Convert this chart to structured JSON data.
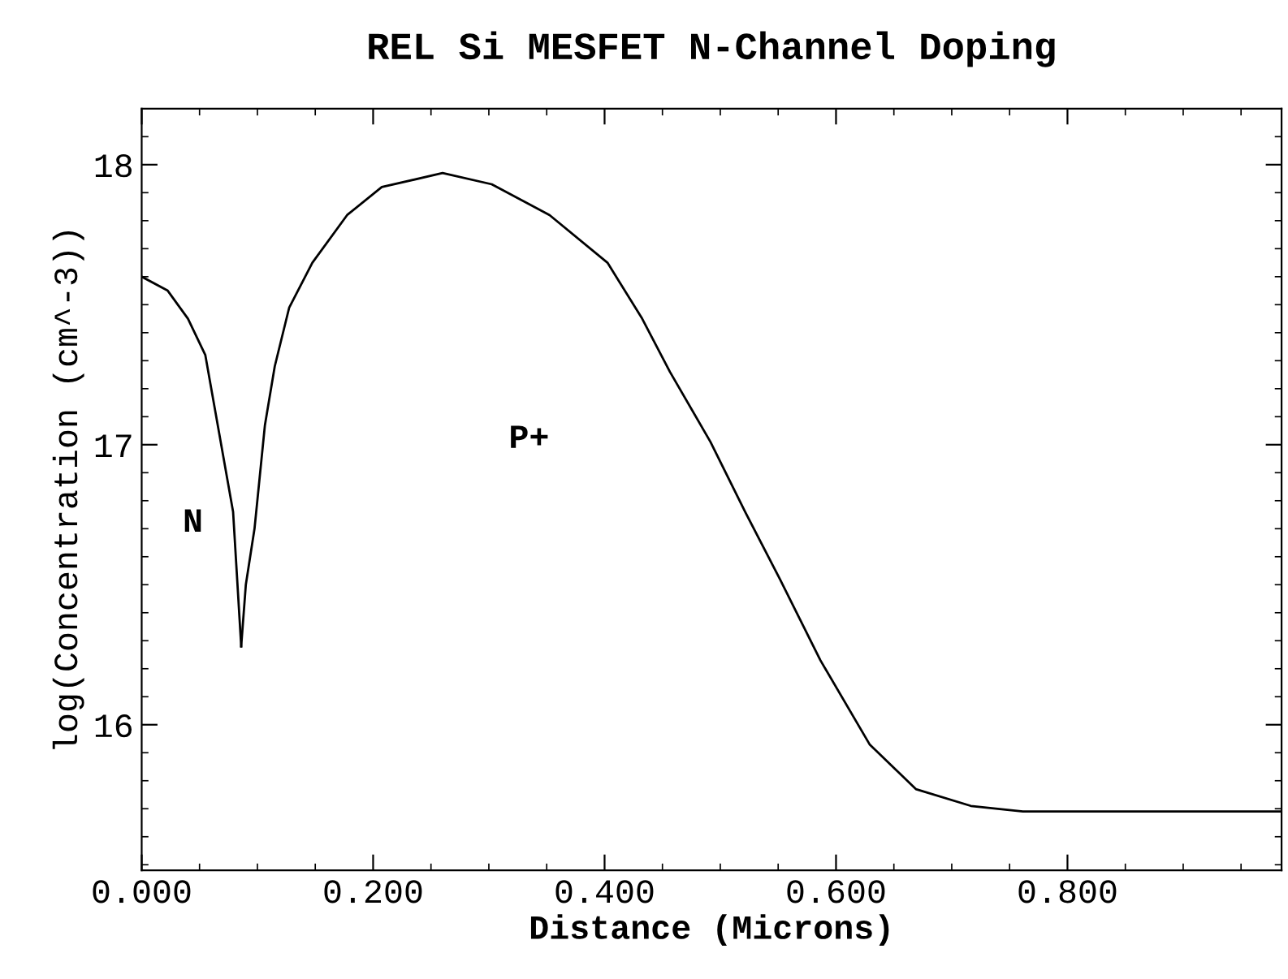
{
  "chart_data": {
    "type": "line",
    "title": "REL Si MESFET N-Channel Doping",
    "xlabel": "Distance (Microns)",
    "ylabel": "log(Concentration (cm^-3))",
    "series": [
      {
        "color": "#000000",
        "x": [
          0,
          0.0225,
          0.04,
          0.055,
          0.079,
          0.0825,
          0.086
        ],
        "values": [
          17.6,
          17.55,
          17.45,
          17.32,
          16.76,
          16.52,
          16.28
        ]
      },
      {
        "color": "#000000",
        "x": [
          0.086,
          0.09,
          0.0975,
          0.1065,
          0.115,
          0.1275,
          0.1475,
          0.1775,
          0.2075,
          0.26,
          0.3025,
          0.3525,
          0.4025,
          0.4325,
          0.4565,
          0.4915,
          0.5215,
          0.5515,
          0.5865,
          0.629,
          0.669,
          0.7165,
          0.7615,
          0.8365,
          0.985
        ],
        "values": [
          16.28,
          16.5,
          16.7,
          17.07,
          17.28,
          17.49,
          17.65,
          17.82,
          17.92,
          17.97,
          17.93,
          17.82,
          17.65,
          17.45,
          17.26,
          17.01,
          16.76,
          16.52,
          16.23,
          15.93,
          15.77,
          15.71,
          15.69,
          15.69,
          15.69
        ]
      }
    ],
    "annotations": [
      "N",
      "P+"
    ],
    "xlim": [
      0,
      0.985
    ],
    "ylim": [
      15.48,
      18.2
    ],
    "xticks": [
      {
        "value": 0,
        "label": "0.000"
      },
      {
        "value": 0.2,
        "label": "0.200"
      },
      {
        "value": 0.4,
        "label": "0.400"
      },
      {
        "value": 0.6,
        "label": "0.600"
      },
      {
        "value": 0.8,
        "label": "0.800"
      },
      {
        "value": 0.05,
        "label": null
      },
      {
        "value": 0.1,
        "label": null
      },
      {
        "value": 0.15,
        "label": null
      },
      {
        "value": 0.25,
        "label": null
      },
      {
        "value": 0.3,
        "label": null
      },
      {
        "value": 0.35,
        "label": null
      },
      {
        "value": 0.45,
        "label": null
      },
      {
        "value": 0.5,
        "label": null
      },
      {
        "value": 0.55,
        "label": null
      },
      {
        "value": 0.65,
        "label": null
      },
      {
        "value": 0.7,
        "label": null
      },
      {
        "value": 0.75,
        "label": null
      },
      {
        "value": 0.85,
        "label": null
      },
      {
        "value": 0.9,
        "label": null
      },
      {
        "value": 0.95,
        "label": null
      }
    ],
    "yticks": [
      16,
      17,
      18,
      {
        "value": 15.5,
        "label": null
      },
      {
        "value": 15.6,
        "label": null
      },
      {
        "value": 15.7,
        "label": null
      },
      {
        "value": 15.8,
        "label": null
      },
      {
        "value": 15.9,
        "label": null
      },
      {
        "value": 16.1,
        "label": null
      },
      {
        "value": 16.2,
        "label": null
      },
      {
        "value": 16.3,
        "label": null
      },
      {
        "value": 16.4,
        "label": null
      },
      {
        "value": 16.5,
        "label": null
      },
      {
        "value": 16.6,
        "label": null
      },
      {
        "value": 16.7,
        "label": null
      },
      {
        "value": 16.8,
        "label": null
      },
      {
        "value": 16.9,
        "label": null
      },
      {
        "value": 17.1,
        "label": null
      },
      {
        "value": 17.2,
        "label": null
      },
      {
        "value": 17.3,
        "label": null
      },
      {
        "value": 17.4,
        "label": null
      },
      {
        "value": 17.5,
        "label": null
      },
      {
        "value": 17.6,
        "label": null
      },
      {
        "value": 17.7,
        "label": null
      },
      {
        "value": 17.8,
        "label": null
      },
      {
        "value": 17.9,
        "label": null
      },
      {
        "value": 18.1,
        "label": null
      }
    ],
    "grid": false,
    "legend": false,
    "marker": "none",
    "line_style": "solid"
  }
}
